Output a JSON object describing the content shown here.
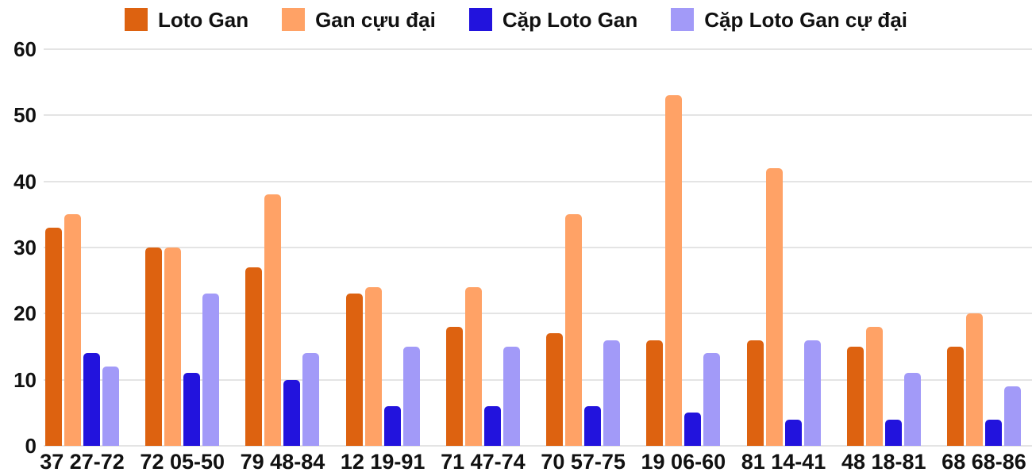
{
  "chart_data": {
    "type": "bar",
    "title": "",
    "xlabel": "",
    "ylabel": "",
    "ylim": [
      0,
      60
    ],
    "yticks": [
      0,
      10,
      20,
      30,
      40,
      50,
      60
    ],
    "grid": true,
    "legend_position": "top",
    "gridline_color": "#e4e4e4",
    "text_color": "#111111",
    "categories": [
      "37 27-72",
      "72 05-50",
      "79 48-84",
      "12 19-91",
      "71 47-74",
      "70 57-75",
      "19 06-60",
      "81 14-41",
      "48 18-81",
      "68 68-86"
    ],
    "series": [
      {
        "name": "Loto Gan",
        "color": "#dd6210",
        "values": [
          33,
          30,
          27,
          23,
          18,
          17,
          16,
          16,
          15,
          15
        ]
      },
      {
        "name": "Gan cựu đại",
        "color": "#ffa266",
        "values": [
          35,
          30,
          38,
          24,
          24,
          35,
          53,
          42,
          18,
          20
        ]
      },
      {
        "name": "Cặp Loto Gan",
        "color": "#2213dd",
        "values": [
          14,
          11,
          10,
          6,
          6,
          6,
          5,
          4,
          4,
          4
        ]
      },
      {
        "name": "Cặp Loto Gan cự đại",
        "color": "#a29af8",
        "values": [
          12,
          23,
          14,
          15,
          15,
          16,
          14,
          16,
          11,
          9
        ]
      }
    ]
  }
}
